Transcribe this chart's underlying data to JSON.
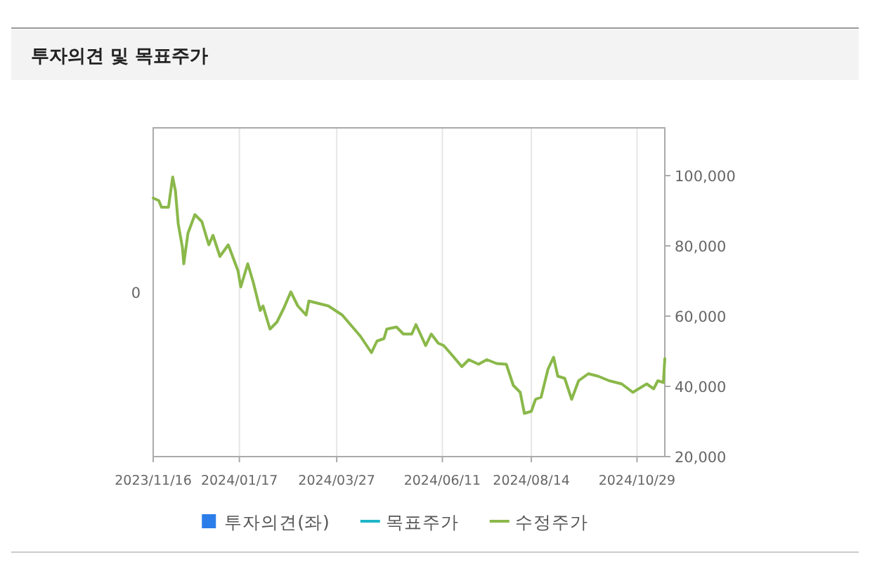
{
  "chart_data": {
    "type": "line",
    "title": "투자의견 및 목표주가",
    "xlim": [
      "2023-11-16",
      "2024-11-18"
    ],
    "xticks": [
      {
        "value": "2023-11-16",
        "label": "2023/11/16"
      },
      {
        "value": "2024-01-17",
        "label": "2024/01/17"
      },
      {
        "value": "2024-03-27",
        "label": "2024/03/27"
      },
      {
        "value": "2024-06-11",
        "label": "2024/06/11"
      },
      {
        "value": "2024-08-14",
        "label": "2024/08/14"
      },
      {
        "value": "2024-10-29",
        "label": "2024/10/29"
      }
    ],
    "annotations": [
      "0"
    ],
    "y2lim": [
      20000,
      113600
    ],
    "y2ticks": [
      {
        "value": 20000,
        "label": "20,000"
      },
      {
        "value": 40000,
        "label": "40,000"
      },
      {
        "value": 60000,
        "label": "60,000"
      },
      {
        "value": 80000,
        "label": "80,000"
      },
      {
        "value": 100000,
        "label": "100,000"
      }
    ],
    "grid": "x",
    "legend": "bottom",
    "series": [
      {
        "name": "투자의견(좌)",
        "type": "bar",
        "color": "#2b7de9"
      },
      {
        "name": "목표주가",
        "type": "line",
        "axis": "y2",
        "color": "#1fb5c8"
      },
      {
        "name": "수정주가",
        "axis": "y2",
        "color": "#8ab84a",
        "x": [
          "2023-11-16",
          "2023-11-20",
          "2023-11-22",
          "2023-11-27",
          "2023-11-30",
          "2023-12-02",
          "2023-12-04",
          "2023-12-07",
          "2023-12-08",
          "2023-12-11",
          "2023-12-16",
          "2023-12-21",
          "2023-12-26",
          "2023-12-29",
          "2024-01-03",
          "2024-01-09",
          "2024-01-16",
          "2024-01-18",
          "2024-01-23",
          "2024-01-27",
          "2024-02-01",
          "2024-02-03",
          "2024-02-08",
          "2024-02-13",
          "2024-02-18",
          "2024-02-23",
          "2024-02-28",
          "2024-03-05",
          "2024-03-07",
          "2024-03-21",
          "2024-03-31",
          "2024-04-13",
          "2024-04-21",
          "2024-04-25",
          "2024-04-30",
          "2024-05-02",
          "2024-05-09",
          "2024-05-14",
          "2024-05-20",
          "2024-05-23",
          "2024-05-30",
          "2024-06-03",
          "2024-06-08",
          "2024-06-12",
          "2024-06-18",
          "2024-06-25",
          "2024-06-30",
          "2024-07-07",
          "2024-07-13",
          "2024-07-20",
          "2024-07-27",
          "2024-08-01",
          "2024-08-06",
          "2024-08-09",
          "2024-08-14",
          "2024-08-17",
          "2024-08-21",
          "2024-08-26",
          "2024-08-30",
          "2024-09-02",
          "2024-09-07",
          "2024-09-12",
          "2024-09-17",
          "2024-09-24",
          "2024-10-01",
          "2024-10-09",
          "2024-10-18",
          "2024-10-26",
          "2024-11-05",
          "2024-11-10",
          "2024-11-13",
          "2024-11-17",
          "2024-11-18"
        ],
        "values": [
          93600,
          92900,
          91000,
          91000,
          99600,
          95600,
          86300,
          79600,
          74900,
          83600,
          88900,
          86900,
          80300,
          83000,
          77000,
          80300,
          72900,
          68300,
          74900,
          69600,
          61600,
          62900,
          56300,
          58300,
          62300,
          66900,
          62900,
          60300,
          64300,
          62900,
          60300,
          54300,
          49600,
          52900,
          53600,
          56300,
          56900,
          54900,
          54900,
          57600,
          51600,
          54900,
          52300,
          51600,
          48900,
          45600,
          47600,
          46300,
          47600,
          46500,
          46300,
          40300,
          38300,
          32300,
          32900,
          36300,
          36900,
          44900,
          48300,
          42900,
          42300,
          36300,
          41600,
          43600,
          42900,
          41600,
          40700,
          38300,
          40700,
          39300,
          41600,
          41100,
          47900
        ]
      }
    ]
  }
}
